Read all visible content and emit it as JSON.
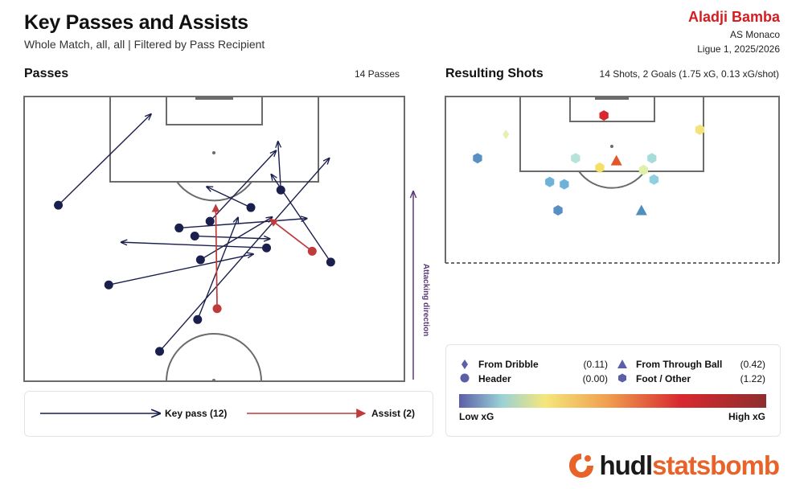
{
  "header": {
    "title": "Key Passes and Assists",
    "subtitle": "Whole Match, all, all | Filtered by Pass Recipient",
    "player": "Aladji Bamba",
    "team": "AS Monaco",
    "competition": "Ligue 1, 2025/2026"
  },
  "passes_panel": {
    "title": "Passes",
    "info": "14 Passes"
  },
  "shots_panel": {
    "title": "Resulting Shots",
    "info": "14 Shots, 2 Goals (1.75 xG, 0.13 xG/shot)"
  },
  "attacking_direction_label": "Attacking direction",
  "pass_legend": {
    "key_pass": "Key pass (12)",
    "assist": "Assist (2)"
  },
  "shot_legend": {
    "from_dribble": {
      "label": "From Dribble",
      "value": "(0.11)"
    },
    "header": {
      "label": "Header",
      "value": "(0.00)"
    },
    "from_through_ball": {
      "label": "From Through Ball",
      "value": "(0.42)"
    },
    "foot_other": {
      "label": "Foot / Other",
      "value": "(1.22)"
    },
    "low_label": "Low xG",
    "high_label": "High xG"
  },
  "brand": {
    "part1": "hudl",
    "part2": "statsbomb"
  },
  "colors": {
    "key_pass": "#1b1f4d",
    "assist": "#c0393b",
    "title_accent": "#d61c20",
    "direction": "#5b3a78"
  },
  "chart_data": [
    {
      "type": "scatter",
      "name": "passes",
      "pitch": {
        "length": 120,
        "width": 80,
        "shown_x": [
          60,
          120
        ]
      },
      "passes": [
        {
          "kind": "key_pass",
          "start": [
            97.1,
            7.2
          ],
          "end": [
            116.3,
            26.7
          ]
        },
        {
          "kind": "key_pass",
          "start": [
            66.3,
            28.5
          ],
          "end": [
            107.0,
            64.2
          ]
        },
        {
          "kind": "key_pass",
          "start": [
            85.1,
            64.5
          ],
          "end": [
            103.6,
            52.0
          ]
        },
        {
          "kind": "key_pass",
          "start": [
            100.3,
            54.0
          ],
          "end": [
            110.5,
            53.4
          ]
        },
        {
          "kind": "key_pass",
          "start": [
            85.6,
            37.1
          ],
          "end": [
            94.6,
            52.2
          ]
        },
        {
          "kind": "key_pass",
          "start": [
            92.3,
            32.6
          ],
          "end": [
            94.3,
            59.5
          ]
        },
        {
          "kind": "key_pass",
          "start": [
            88.1,
            51.0
          ],
          "end": [
            89.3,
            20.4
          ]
        },
        {
          "kind": "key_pass",
          "start": [
            73.0,
            36.5
          ],
          "end": [
            94.5,
            45.0
          ]
        },
        {
          "kind": "key_pass",
          "start": [
            80.3,
            17.8
          ],
          "end": [
            86.8,
            48.2
          ]
        },
        {
          "kind": "key_pass",
          "start": [
            90.6,
            35.9
          ],
          "end": [
            90.0,
            51.7
          ]
        },
        {
          "kind": "key_pass",
          "start": [
            96.6,
            47.7
          ],
          "end": [
            101.0,
            38.4
          ]
        },
        {
          "kind": "key_pass",
          "start": [
            93.7,
            39.1
          ],
          "end": [
            108.6,
            53.0
          ]
        },
        {
          "kind": "assist",
          "start": [
            75.3,
            40.6
          ],
          "end": [
            97.2,
            40.3
          ]
        },
        {
          "kind": "assist",
          "start": [
            87.4,
            60.6
          ],
          "end": [
            94.2,
            51.7
          ]
        }
      ]
    },
    {
      "type": "scatter",
      "name": "resulting shots",
      "pitch": {
        "length": 120,
        "width": 80,
        "shown_x": [
          60,
          120
        ]
      },
      "xg_scale": [
        "#5b5fa8",
        "#6fb2d9",
        "#b6e3da",
        "#f4e77a",
        "#f4a04b",
        "#d1292f",
        "#8e2e2e"
      ],
      "shots": [
        {
          "type": "foot",
          "x": 116.0,
          "y": 38.0,
          "goal": true
        },
        {
          "type": "foot",
          "x": 113.0,
          "y": 61.0,
          "goal": false
        },
        {
          "type": "dribble",
          "x": 112.0,
          "y": 14.5,
          "goal": false
        },
        {
          "type": "foot",
          "x": 107.0,
          "y": 7.7,
          "goal": false
        },
        {
          "type": "foot",
          "x": 107.0,
          "y": 31.2,
          "goal": false
        },
        {
          "type": "foot",
          "x": 105.0,
          "y": 37.0,
          "goal": false
        },
        {
          "type": "through_ball",
          "x": 106.5,
          "y": 41.0,
          "goal": true
        },
        {
          "type": "foot",
          "x": 107.0,
          "y": 49.5,
          "goal": false
        },
        {
          "type": "foot",
          "x": 104.5,
          "y": 47.5,
          "goal": false
        },
        {
          "type": "foot",
          "x": 102.0,
          "y": 25.0,
          "goal": false
        },
        {
          "type": "foot",
          "x": 101.5,
          "y": 28.5,
          "goal": false
        },
        {
          "type": "foot",
          "x": 102.5,
          "y": 50.0,
          "goal": false
        },
        {
          "type": "foot",
          "x": 96.0,
          "y": 27.0,
          "goal": false
        },
        {
          "type": "through_ball",
          "x": 96.0,
          "y": 47.0,
          "goal": false
        }
      ]
    }
  ]
}
